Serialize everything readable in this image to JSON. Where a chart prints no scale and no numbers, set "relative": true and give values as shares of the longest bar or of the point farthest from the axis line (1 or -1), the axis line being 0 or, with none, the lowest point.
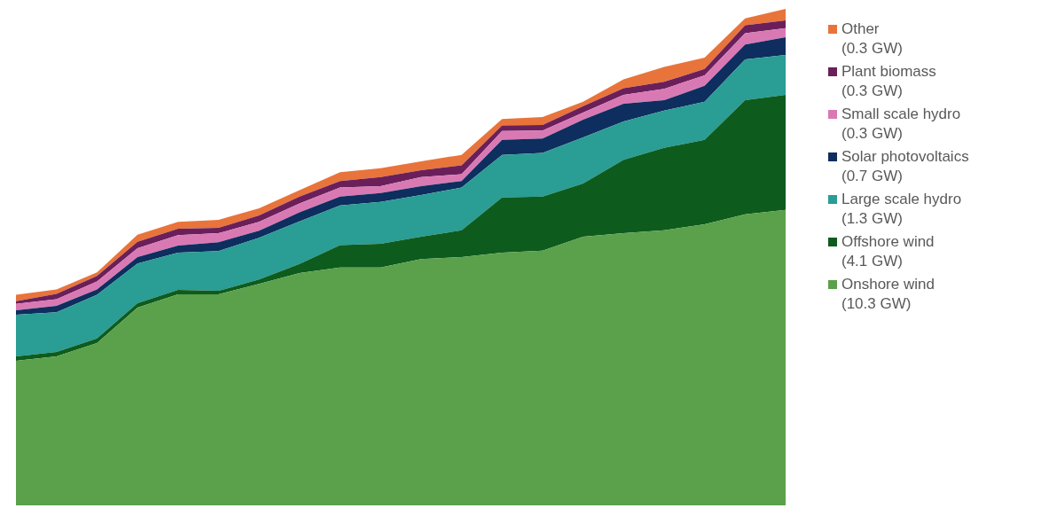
{
  "chart_data": {
    "type": "area",
    "stacked": true,
    "relative": true,
    "legend": "right",
    "categories": [
      null,
      null,
      null,
      null,
      null,
      null,
      null,
      null,
      null,
      null,
      null,
      null,
      null,
      null,
      null,
      null,
      null,
      null,
      null,
      null
    ],
    "series": [
      {
        "name": "Onshore wind (10.3 GW)",
        "color": "#5ba04a",
        "values": [
          0.291,
          0.3,
          0.327,
          0.398,
          0.425,
          0.425,
          0.446,
          0.468,
          0.479,
          0.479,
          0.496,
          0.5,
          0.509,
          0.513,
          0.541,
          0.548,
          0.554,
          0.566,
          0.586,
          0.595
        ]
      },
      {
        "name": "Offshore wind (4.1 GW)",
        "color": "#0d5c1e",
        "values": [
          0.009,
          0.009,
          0.009,
          0.009,
          0.009,
          0.007,
          0.009,
          0.018,
          0.045,
          0.048,
          0.045,
          0.054,
          0.111,
          0.109,
          0.107,
          0.148,
          0.166,
          0.17,
          0.23,
          0.232
        ]
      },
      {
        "name": "Large scale hydro (1.3 GW)",
        "color": "#2a9d94",
        "values": [
          0.084,
          0.08,
          0.088,
          0.08,
          0.075,
          0.08,
          0.084,
          0.086,
          0.08,
          0.084,
          0.084,
          0.086,
          0.086,
          0.088,
          0.093,
          0.077,
          0.075,
          0.077,
          0.082,
          0.08
        ]
      },
      {
        "name": "Solar photovoltaics (0.7 GW)",
        "color": "#0d2e5e",
        "values": [
          0.009,
          0.013,
          0.011,
          0.013,
          0.014,
          0.018,
          0.014,
          0.018,
          0.018,
          0.018,
          0.018,
          0.013,
          0.03,
          0.029,
          0.036,
          0.036,
          0.021,
          0.032,
          0.03,
          0.036
        ]
      },
      {
        "name": "Small scale hydro (0.3 GW)",
        "color": "#d979b4",
        "values": [
          0.013,
          0.013,
          0.016,
          0.018,
          0.021,
          0.018,
          0.018,
          0.018,
          0.018,
          0.014,
          0.018,
          0.014,
          0.018,
          0.016,
          0.014,
          0.018,
          0.023,
          0.021,
          0.023,
          0.018
        ]
      },
      {
        "name": "Plant biomass (0.3 GW)",
        "color": "#6b1f5a",
        "values": [
          0.005,
          0.011,
          0.011,
          0.013,
          0.013,
          0.011,
          0.013,
          0.014,
          0.013,
          0.018,
          0.014,
          0.018,
          0.011,
          0.011,
          0.013,
          0.013,
          0.014,
          0.013,
          0.016,
          0.016
        ]
      },
      {
        "name": "Other (0.3 GW)",
        "color": "#e8743b",
        "values": [
          0.013,
          0.009,
          0.007,
          0.014,
          0.014,
          0.016,
          0.014,
          0.013,
          0.018,
          0.018,
          0.018,
          0.021,
          0.013,
          0.016,
          0.009,
          0.018,
          0.03,
          0.023,
          0.014,
          0.023
        ]
      }
    ]
  }
}
